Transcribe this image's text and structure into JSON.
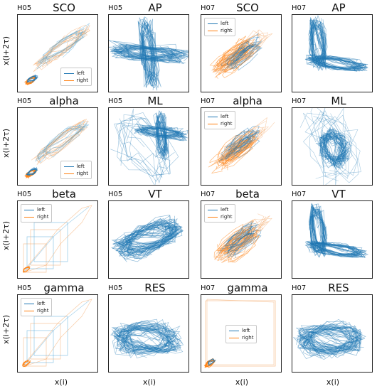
{
  "colors": {
    "left": "#1f77b4",
    "right": "#ff7f0e",
    "left_light": "#4aa3d8",
    "right_light": "#f4a460"
  },
  "axis_labels": {
    "y": "x(i+2τ)",
    "x": "x(i)"
  },
  "chart_data": [
    {
      "type": "line",
      "subject": "H05",
      "title": "SCO",
      "legend": [
        "left",
        "right"
      ],
      "legend_position": "lower-right",
      "style": "diagonal-sparse"
    },
    {
      "type": "line",
      "subject": "H05",
      "title": "AP",
      "style": "cross"
    },
    {
      "type": "line",
      "subject": "H07",
      "title": "SCO",
      "legend": [
        "left",
        "right"
      ],
      "legend_position": "upper-left",
      "style": "diagonal-dense"
    },
    {
      "type": "line",
      "subject": "H07",
      "title": "AP",
      "style": "l-shape"
    },
    {
      "type": "line",
      "subject": "H05",
      "title": "alpha",
      "legend": [
        "left",
        "right"
      ],
      "legend_position": "lower-right",
      "style": "diagonal-sparse"
    },
    {
      "type": "line",
      "subject": "H05",
      "title": "ML",
      "style": "cross-offset"
    },
    {
      "type": "line",
      "subject": "H07",
      "title": "alpha",
      "legend": [
        "left",
        "right"
      ],
      "legend_position": "upper-left",
      "style": "diagonal-dense"
    },
    {
      "type": "line",
      "subject": "H07",
      "title": "ML",
      "style": "cluster"
    },
    {
      "type": "line",
      "subject": "H05",
      "title": "beta",
      "legend": [
        "left",
        "right"
      ],
      "legend_position": "upper-left",
      "style": "boxes"
    },
    {
      "type": "line",
      "subject": "H05",
      "title": "VT",
      "style": "blob"
    },
    {
      "type": "line",
      "subject": "H07",
      "title": "beta",
      "legend": [
        "left",
        "right"
      ],
      "legend_position": "upper-left",
      "style": "diagonal-dense"
    },
    {
      "type": "line",
      "subject": "H07",
      "title": "VT",
      "style": "l-shape"
    },
    {
      "type": "line",
      "subject": "H05",
      "title": "gamma",
      "legend": [
        "left",
        "right"
      ],
      "legend_position": "upper-left",
      "style": "boxes"
    },
    {
      "type": "line",
      "subject": "H05",
      "title": "RES",
      "style": "fan"
    },
    {
      "type": "line",
      "subject": "H07",
      "title": "gamma",
      "legend": [
        "left",
        "right"
      ],
      "legend_position": "center",
      "style": "square"
    },
    {
      "type": "line",
      "subject": "H07",
      "title": "RES",
      "style": "fan"
    }
  ]
}
